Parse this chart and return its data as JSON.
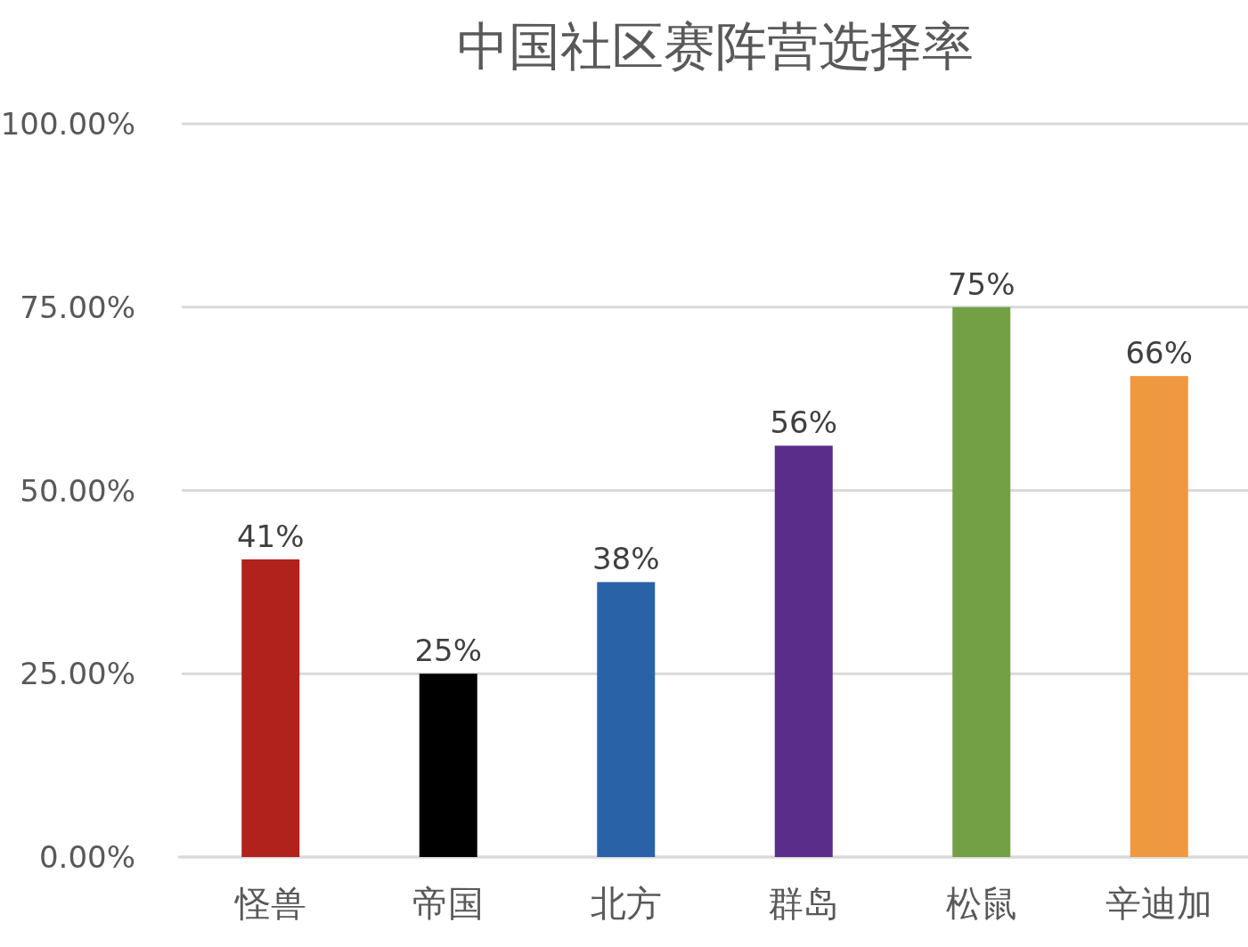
{
  "chart_data": {
    "type": "bar",
    "title": "中国社区赛阵营选择率",
    "categories": [
      "怪兽",
      "帝国",
      "北方",
      "群岛",
      "松鼠",
      "辛迪加"
    ],
    "values": [
      40.6,
      25,
      37.5,
      56.1,
      75,
      65.6
    ],
    "value_labels": [
      "41%",
      "25%",
      "38%",
      "56%",
      "75%",
      "66%"
    ],
    "colors": [
      "#b0221b",
      "#000000",
      "#2a62a8",
      "#5a2d8a",
      "#73a044",
      "#ee9840"
    ],
    "ylim": [
      0,
      100
    ],
    "yticks": [
      {
        "value": 0,
        "label": "0.00%"
      },
      {
        "value": 25,
        "label": "25.00%"
      },
      {
        "value": 50,
        "label": "50.00%"
      },
      {
        "value": 75,
        "label": "75.00%"
      },
      {
        "value": 100,
        "label": "100.00%"
      }
    ],
    "grid": "y"
  }
}
